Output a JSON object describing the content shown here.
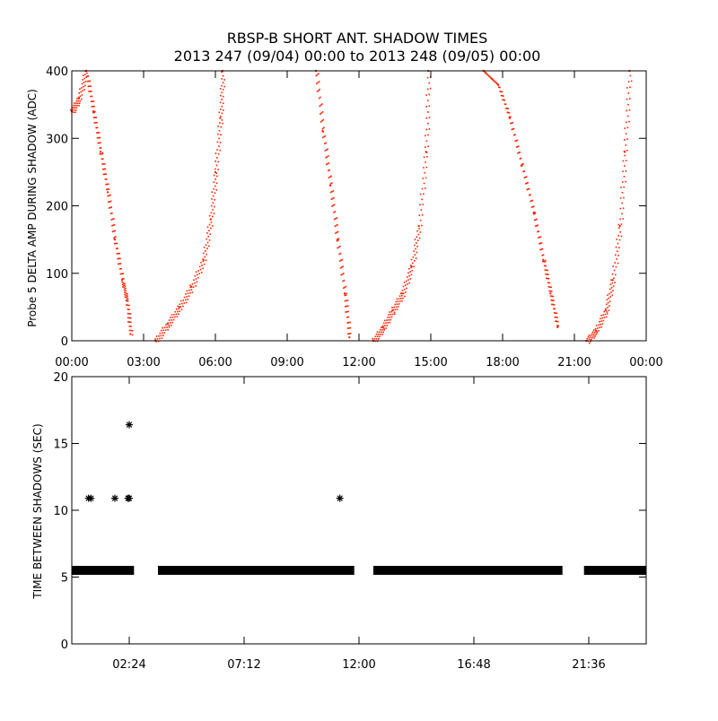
{
  "title_line1": "RBSP-B SHORT ANT. SHADOW TIMES",
  "title_line2": "2013 247 (09/04) 00:00 to 2013 248 (09/05) 00:00",
  "colors": {
    "series": "#ff2000",
    "axis": "#000000",
    "background": "#ffffff"
  },
  "chart_data": [
    {
      "type": "scatter",
      "ylabel": "Probe 5 DELTA AMP DURING SHADOW (ADC)",
      "xlabel": "",
      "xlim": [
        "00:00",
        "24:00"
      ],
      "ylim": [
        0,
        400
      ],
      "x_ticks": [
        "00:00",
        "03:00",
        "06:00",
        "09:00",
        "12:00",
        "15:00",
        "18:00",
        "21:00",
        "00:00"
      ],
      "y_ticks": [
        "0",
        "100",
        "200",
        "300",
        "400"
      ],
      "grid": false,
      "marker_color": "#ff2000",
      "series": [
        {
          "x_hours": [
            0.0,
            0.3,
            0.6,
            0.9,
            1.2,
            1.5,
            1.8,
            2.1,
            2.3,
            2.45
          ],
          "y": [
            340,
            360,
            400,
            340,
            280,
            220,
            150,
            90,
            60,
            10
          ]
        },
        {
          "x_hours": [
            3.5,
            4.0,
            4.5,
            5.0,
            5.5,
            5.8,
            6.0,
            6.2,
            6.3
          ],
          "y": [
            0,
            25,
            50,
            80,
            120,
            180,
            250,
            330,
            400
          ]
        },
        {
          "x_hours": [
            10.2,
            10.5,
            10.8,
            11.1,
            11.4,
            11.6
          ],
          "y": [
            400,
            310,
            230,
            150,
            70,
            5
          ]
        },
        {
          "x_hours": [
            12.6,
            13.0,
            13.4,
            13.8,
            14.2,
            14.5,
            14.8,
            14.9
          ],
          "y": [
            0,
            20,
            45,
            70,
            110,
            170,
            280,
            400
          ]
        },
        {
          "x_hours": [
            17.2,
            17.8,
            18.3,
            18.8,
            19.3,
            19.7,
            20.0,
            20.3
          ],
          "y": [
            400,
            380,
            330,
            260,
            190,
            120,
            70,
            20
          ]
        },
        {
          "x_hours": [
            21.5,
            21.9,
            22.3,
            22.6,
            22.9,
            23.1,
            23.3
          ],
          "y": [
            0,
            15,
            45,
            90,
            170,
            280,
            400
          ]
        }
      ]
    },
    {
      "type": "scatter",
      "ylabel": "TIME BETWEEN SHADOWS (SEC)",
      "xlabel": "",
      "xlim": [
        "00:00",
        "24:00"
      ],
      "ylim": [
        0,
        20
      ],
      "x_ticks": [
        "02:24",
        "07:12",
        "12:00",
        "16:48",
        "21:36"
      ],
      "y_ticks": [
        "0",
        "5",
        "10",
        "15",
        "20"
      ],
      "grid": false,
      "marker": "asterisk",
      "baseline_value": 5.5,
      "baseline_segments_hours": [
        [
          0.0,
          2.6
        ],
        [
          3.6,
          11.8
        ],
        [
          12.6,
          20.5
        ],
        [
          21.4,
          24.0
        ]
      ],
      "outliers": {
        "x_hours": [
          0.7,
          0.8,
          1.8,
          2.35,
          2.4,
          2.4,
          11.2
        ],
        "y": [
          10.9,
          10.9,
          10.9,
          10.9,
          10.9,
          16.4,
          10.9
        ]
      }
    }
  ]
}
